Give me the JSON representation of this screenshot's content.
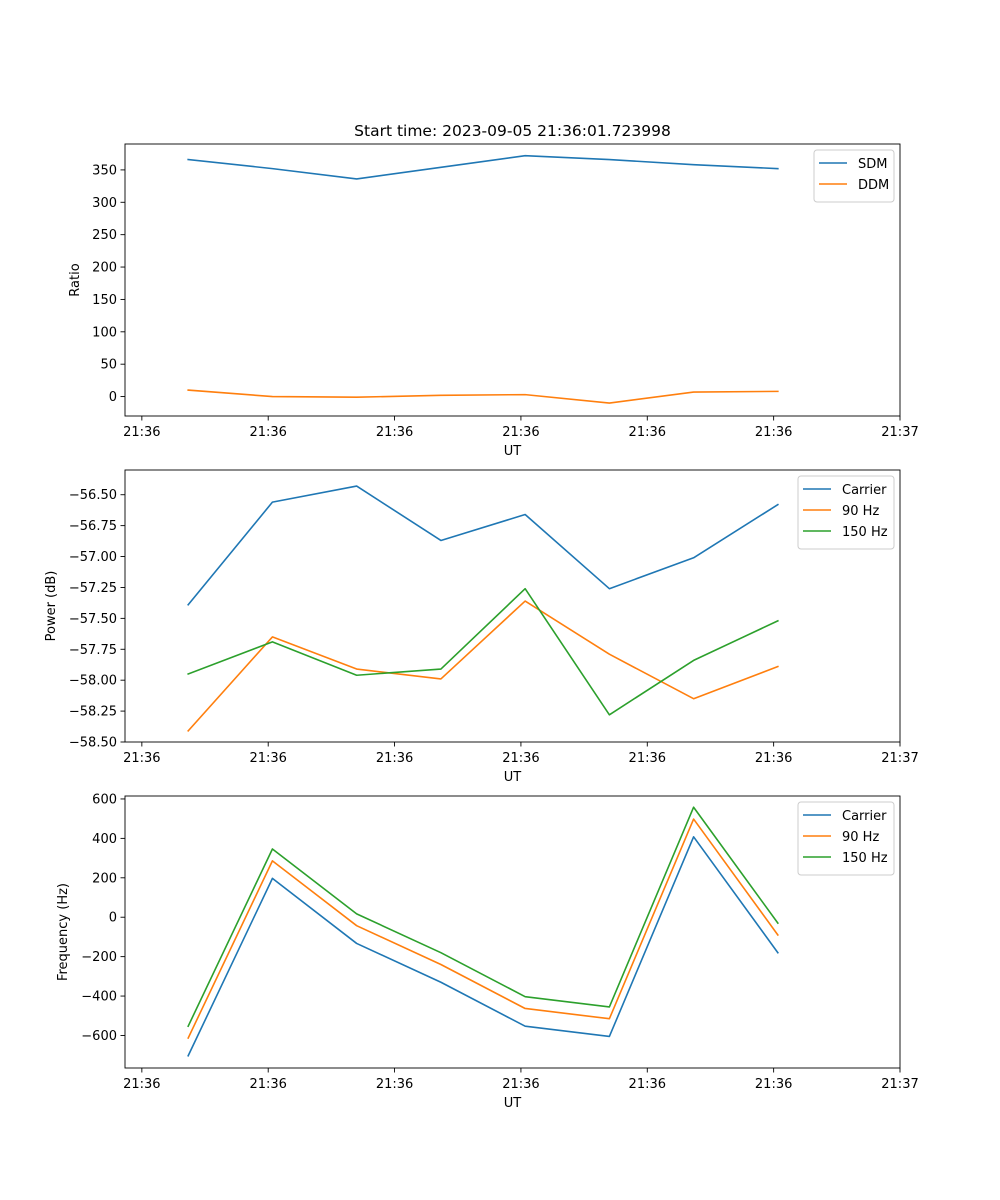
{
  "figure_title": "Start time: 2023-09-05 21:36:01.723998",
  "chart_data": [
    {
      "type": "line",
      "title": "Start time: 2023-09-05 21:36:01.723998",
      "xlabel": "UT",
      "ylabel": "Ratio",
      "x_index": [
        0,
        1,
        2,
        3,
        4,
        5,
        6,
        7
      ],
      "xlim": [
        -0.75,
        8.45
      ],
      "x_ticks": [
        -0.55,
        0.95,
        2.45,
        3.95,
        5.45,
        6.95,
        8.45
      ],
      "x_tick_labels": [
        "21:36",
        "21:36",
        "21:36",
        "21:36",
        "21:36",
        "21:36",
        "21:37"
      ],
      "ylim": [
        -30,
        390
      ],
      "y_ticks": [
        0,
        50,
        100,
        150,
        200,
        250,
        300,
        350
      ],
      "y_tick_labels": [
        "0",
        "50",
        "100",
        "150",
        "200",
        "250",
        "300",
        "350"
      ],
      "legend_location": "top-right",
      "series": [
        {
          "name": "SDM",
          "color": "#1f77b4",
          "values": [
            366,
            352,
            336,
            354,
            372,
            366,
            358,
            352
          ]
        },
        {
          "name": "DDM",
          "color": "#ff7f0e",
          "values": [
            10,
            0,
            -1,
            2,
            3,
            -10,
            7,
            8
          ]
        }
      ]
    },
    {
      "type": "line",
      "xlabel": "UT",
      "ylabel": "Power (dB)",
      "x_index": [
        0,
        1,
        2,
        3,
        4,
        5,
        6,
        7
      ],
      "xlim": [
        -0.75,
        8.45
      ],
      "x_ticks": [
        -0.55,
        0.95,
        2.45,
        3.95,
        5.45,
        6.95,
        8.45
      ],
      "x_tick_labels": [
        "21:36",
        "21:36",
        "21:36",
        "21:36",
        "21:36",
        "21:36",
        "21:37"
      ],
      "ylim": [
        -58.5,
        -56.3
      ],
      "y_ticks": [
        -58.5,
        -58.25,
        -58.0,
        -57.75,
        -57.5,
        -57.25,
        -57.0,
        -56.75,
        -56.5
      ],
      "y_tick_labels": [
        "−58.50",
        "−58.25",
        "−58.00",
        "−57.75",
        "−57.50",
        "−57.25",
        "−57.00",
        "−56.75",
        "−56.50"
      ],
      "legend_location": "top-right",
      "series": [
        {
          "name": "Carrier",
          "color": "#1f77b4",
          "values": [
            -57.39,
            -56.56,
            -56.43,
            -56.87,
            -56.66,
            -57.26,
            -57.01,
            -56.58
          ]
        },
        {
          "name": "90 Hz",
          "color": "#ff7f0e",
          "values": [
            -58.41,
            -57.65,
            -57.91,
            -57.99,
            -57.36,
            -57.79,
            -58.15,
            -57.89
          ]
        },
        {
          "name": "150 Hz",
          "color": "#2ca02c",
          "values": [
            -57.95,
            -57.69,
            -57.96,
            -57.91,
            -57.26,
            -58.28,
            -57.84,
            -57.52
          ]
        }
      ]
    },
    {
      "type": "line",
      "xlabel": "UT",
      "ylabel": "Frequency (Hz)",
      "x_index": [
        0,
        1,
        2,
        3,
        4,
        5,
        6,
        7
      ],
      "xlim": [
        -0.75,
        8.45
      ],
      "x_ticks": [
        -0.55,
        0.95,
        2.45,
        3.95,
        5.45,
        6.95,
        8.45
      ],
      "x_tick_labels": [
        "21:36",
        "21:36",
        "21:36",
        "21:36",
        "21:36",
        "21:36",
        "21:37"
      ],
      "ylim": [
        -765,
        615
      ],
      "y_ticks": [
        -600,
        -400,
        -200,
        0,
        200,
        400,
        600
      ],
      "y_tick_labels": [
        "−600",
        "−400",
        "−200",
        "0",
        "200",
        "400",
        "600"
      ],
      "legend_location": "top-right",
      "series": [
        {
          "name": "Carrier",
          "color": "#1f77b4",
          "values": [
            -703,
            197,
            -133,
            -330,
            -553,
            -605,
            408,
            -180
          ]
        },
        {
          "name": "90 Hz",
          "color": "#ff7f0e",
          "values": [
            -613,
            286,
            -43,
            -240,
            -463,
            -515,
            498,
            -90
          ]
        },
        {
          "name": "150 Hz",
          "color": "#2ca02c",
          "values": [
            -553,
            346,
            17,
            -180,
            -403,
            -455,
            558,
            -30
          ]
        }
      ]
    }
  ]
}
